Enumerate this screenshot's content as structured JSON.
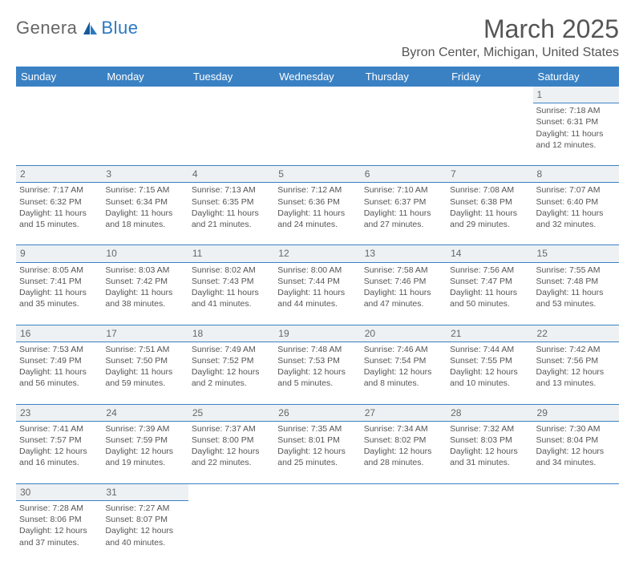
{
  "logo": {
    "part1": "Genera",
    "part2": "Blue"
  },
  "title": "March 2025",
  "location": "Byron Center, Michigan, United States",
  "colors": {
    "header_bg": "#3a81c4",
    "header_fg": "#ffffff",
    "border": "#3a81c4",
    "daynum_bg": "#eef1f3",
    "text": "#555555",
    "logo_gray": "#666666",
    "logo_blue": "#2b78c2"
  },
  "columns": [
    "Sunday",
    "Monday",
    "Tuesday",
    "Wednesday",
    "Thursday",
    "Friday",
    "Saturday"
  ],
  "weeks": [
    [
      null,
      null,
      null,
      null,
      null,
      null,
      {
        "d": "1",
        "sr": "7:18 AM",
        "ss": "6:31 PM",
        "dl": "11 hours and 12 minutes."
      }
    ],
    [
      {
        "d": "2",
        "sr": "7:17 AM",
        "ss": "6:32 PM",
        "dl": "11 hours and 15 minutes."
      },
      {
        "d": "3",
        "sr": "7:15 AM",
        "ss": "6:34 PM",
        "dl": "11 hours and 18 minutes."
      },
      {
        "d": "4",
        "sr": "7:13 AM",
        "ss": "6:35 PM",
        "dl": "11 hours and 21 minutes."
      },
      {
        "d": "5",
        "sr": "7:12 AM",
        "ss": "6:36 PM",
        "dl": "11 hours and 24 minutes."
      },
      {
        "d": "6",
        "sr": "7:10 AM",
        "ss": "6:37 PM",
        "dl": "11 hours and 27 minutes."
      },
      {
        "d": "7",
        "sr": "7:08 AM",
        "ss": "6:38 PM",
        "dl": "11 hours and 29 minutes."
      },
      {
        "d": "8",
        "sr": "7:07 AM",
        "ss": "6:40 PM",
        "dl": "11 hours and 32 minutes."
      }
    ],
    [
      {
        "d": "9",
        "sr": "8:05 AM",
        "ss": "7:41 PM",
        "dl": "11 hours and 35 minutes."
      },
      {
        "d": "10",
        "sr": "8:03 AM",
        "ss": "7:42 PM",
        "dl": "11 hours and 38 minutes."
      },
      {
        "d": "11",
        "sr": "8:02 AM",
        "ss": "7:43 PM",
        "dl": "11 hours and 41 minutes."
      },
      {
        "d": "12",
        "sr": "8:00 AM",
        "ss": "7:44 PM",
        "dl": "11 hours and 44 minutes."
      },
      {
        "d": "13",
        "sr": "7:58 AM",
        "ss": "7:46 PM",
        "dl": "11 hours and 47 minutes."
      },
      {
        "d": "14",
        "sr": "7:56 AM",
        "ss": "7:47 PM",
        "dl": "11 hours and 50 minutes."
      },
      {
        "d": "15",
        "sr": "7:55 AM",
        "ss": "7:48 PM",
        "dl": "11 hours and 53 minutes."
      }
    ],
    [
      {
        "d": "16",
        "sr": "7:53 AM",
        "ss": "7:49 PM",
        "dl": "11 hours and 56 minutes."
      },
      {
        "d": "17",
        "sr": "7:51 AM",
        "ss": "7:50 PM",
        "dl": "11 hours and 59 minutes."
      },
      {
        "d": "18",
        "sr": "7:49 AM",
        "ss": "7:52 PM",
        "dl": "12 hours and 2 minutes."
      },
      {
        "d": "19",
        "sr": "7:48 AM",
        "ss": "7:53 PM",
        "dl": "12 hours and 5 minutes."
      },
      {
        "d": "20",
        "sr": "7:46 AM",
        "ss": "7:54 PM",
        "dl": "12 hours and 8 minutes."
      },
      {
        "d": "21",
        "sr": "7:44 AM",
        "ss": "7:55 PM",
        "dl": "12 hours and 10 minutes."
      },
      {
        "d": "22",
        "sr": "7:42 AM",
        "ss": "7:56 PM",
        "dl": "12 hours and 13 minutes."
      }
    ],
    [
      {
        "d": "23",
        "sr": "7:41 AM",
        "ss": "7:57 PM",
        "dl": "12 hours and 16 minutes."
      },
      {
        "d": "24",
        "sr": "7:39 AM",
        "ss": "7:59 PM",
        "dl": "12 hours and 19 minutes."
      },
      {
        "d": "25",
        "sr": "7:37 AM",
        "ss": "8:00 PM",
        "dl": "12 hours and 22 minutes."
      },
      {
        "d": "26",
        "sr": "7:35 AM",
        "ss": "8:01 PM",
        "dl": "12 hours and 25 minutes."
      },
      {
        "d": "27",
        "sr": "7:34 AM",
        "ss": "8:02 PM",
        "dl": "12 hours and 28 minutes."
      },
      {
        "d": "28",
        "sr": "7:32 AM",
        "ss": "8:03 PM",
        "dl": "12 hours and 31 minutes."
      },
      {
        "d": "29",
        "sr": "7:30 AM",
        "ss": "8:04 PM",
        "dl": "12 hours and 34 minutes."
      }
    ],
    [
      {
        "d": "30",
        "sr": "7:28 AM",
        "ss": "8:06 PM",
        "dl": "12 hours and 37 minutes."
      },
      {
        "d": "31",
        "sr": "7:27 AM",
        "ss": "8:07 PM",
        "dl": "12 hours and 40 minutes."
      },
      null,
      null,
      null,
      null,
      null
    ]
  ],
  "labels": {
    "sunrise": "Sunrise:",
    "sunset": "Sunset:",
    "daylight": "Daylight:"
  }
}
